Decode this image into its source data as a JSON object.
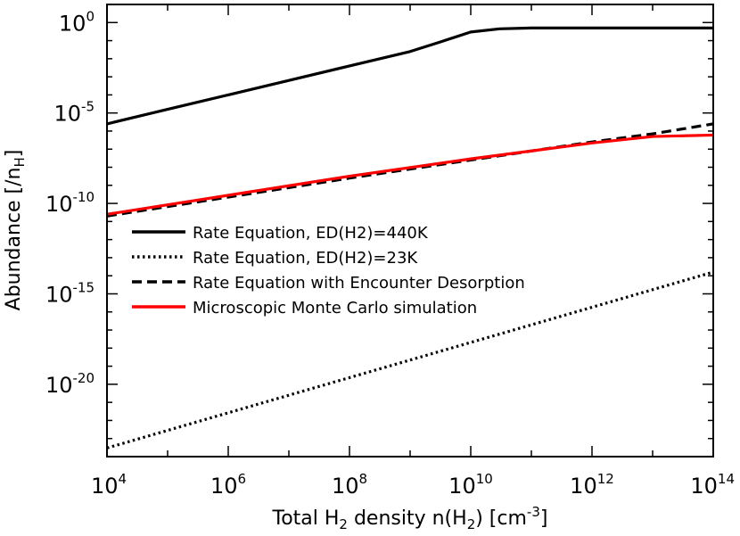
{
  "chart_data": {
    "type": "line",
    "xscale": "log",
    "yscale": "log",
    "xlim": [
      10000,
      100000000000000.0
    ],
    "ylim": [
      1e-24,
      10
    ],
    "xlabel": {
      "pre": "Total H",
      "sub": "2",
      "mid": " density n(H",
      "sub2": "2",
      "post": ") [cm",
      "sup": "-3",
      "end": "]"
    },
    "ylabel": {
      "pre": "Abundance [/n",
      "sub": "H",
      "post": "]"
    },
    "x_ticks": [
      {
        "value": 10000,
        "base": "10",
        "exp": "4"
      },
      {
        "value": 1000000,
        "base": "10",
        "exp": "6"
      },
      {
        "value": 100000000,
        "base": "10",
        "exp": "8"
      },
      {
        "value": 10000000000,
        "base": "10",
        "exp": "10"
      },
      {
        "value": 1000000000000,
        "base": "10",
        "exp": "12"
      },
      {
        "value": 100000000000000.0,
        "base": "10",
        "exp": "14"
      }
    ],
    "y_ticks": [
      {
        "value": 1,
        "base": "10",
        "exp": "0"
      },
      {
        "value": 1e-05,
        "base": "10",
        "exp": "-5"
      },
      {
        "value": 1e-10,
        "base": "10",
        "exp": "-10"
      },
      {
        "value": 1e-15,
        "base": "10",
        "exp": "-15"
      },
      {
        "value": 1e-20,
        "base": "10",
        "exp": "-20"
      }
    ],
    "legend_position": "center-left",
    "series": [
      {
        "name": "Rate Equation, ED(H2)=440K",
        "color": "#000000",
        "dash": "solid",
        "x": [
          10000,
          100000,
          1000000,
          10000000,
          100000000,
          1000000000,
          3000000000,
          10000000000,
          30000000000,
          100000000000,
          1000000000000,
          10000000000000,
          100000000000000.0
        ],
        "y": [
          2.5e-06,
          1.6e-05,
          0.0001,
          0.00063,
          0.004,
          0.025,
          0.08,
          0.3,
          0.45,
          0.5,
          0.5,
          0.5,
          0.5
        ]
      },
      {
        "name": "Rate Equation, ED(H2)=23K",
        "color": "#000000",
        "dash": "dotted",
        "x": [
          10000,
          100000000000000.0
        ],
        "y": [
          3e-24,
          1.6e-14
        ]
      },
      {
        "name": "Rate Equation with Encounter Desorption",
        "color": "#000000",
        "dash": "dashed",
        "x": [
          10000,
          100000000,
          10000000000,
          1000000000000,
          10000000000000,
          100000000000000.0
        ],
        "y": [
          2e-11,
          2.5e-09,
          2.5e-08,
          2.5e-07,
          7e-07,
          2.5e-06
        ]
      },
      {
        "name": "Microscopic Monte Carlo simulation",
        "color": "#ff0000",
        "dash": "solid",
        "x": [
          10000,
          100000000,
          10000000000,
          1000000000000,
          10000000000000,
          100000000000000.0
        ],
        "y": [
          2.5e-11,
          3.2e-09,
          2.9e-08,
          2.2e-07,
          5e-07,
          6e-07
        ]
      }
    ]
  }
}
